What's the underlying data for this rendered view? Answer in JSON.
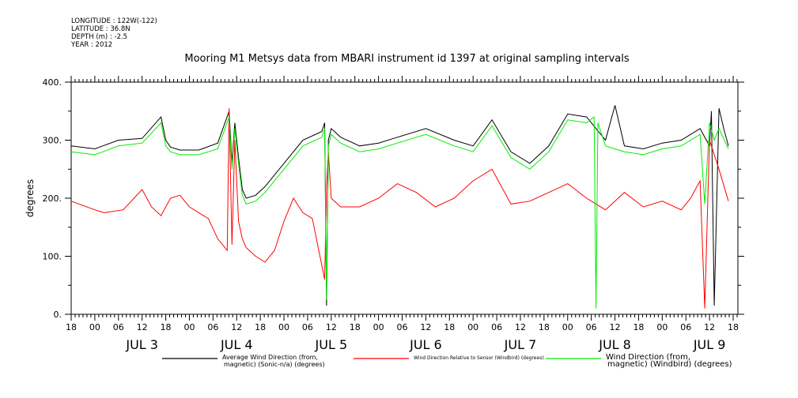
{
  "header": {
    "longitude": "LONGITUDE : 122W(-122)",
    "latitude": "LATITUDE : 36.8N",
    "depth": "DEPTH (m) : -2.5",
    "year": "YEAR : 2012",
    "title": "Mooring M1 Metsys data from MBARI instrument id 1397 at original sampling intervals"
  },
  "chart_data": {
    "type": "line",
    "title": "Mooring M1 Metsys data from MBARI instrument id 1397 at original sampling intervals",
    "ylabel": "degrees",
    "xlabel": "",
    "ylim": [
      0,
      400
    ],
    "yticks": [
      "0.",
      "100.",
      "200.",
      "300.",
      "400."
    ],
    "xlim": [
      -0.25,
      6.8
    ],
    "hour_ticks": [
      "00",
      "06",
      "12",
      "18"
    ],
    "days": [
      "JUL 3",
      "JUL 4",
      "JUL 5",
      "JUL 6",
      "JUL 7",
      "JUL 8",
      "JUL 9"
    ],
    "x_units": "days since JUL 3 00:00",
    "series": [
      {
        "name": "Average Wind Direction (from, magnetic) (Sonic-n/a) (degrees)",
        "legend_lines": [
          "Average Wind Direction (from,",
          "magnetic) (Sonic-n/a) (degrees)"
        ],
        "color": "#000000",
        "x": [
          -0.25,
          0.0,
          0.25,
          0.5,
          0.7,
          0.75,
          0.8,
          0.9,
          1.1,
          1.3,
          1.42,
          1.45,
          1.48,
          1.52,
          1.56,
          1.6,
          1.7,
          1.8,
          2.0,
          2.2,
          2.4,
          2.43,
          2.45,
          2.47,
          2.5,
          2.6,
          2.8,
          3.0,
          3.2,
          3.5,
          3.8,
          4.0,
          4.2,
          4.4,
          4.6,
          4.8,
          5.0,
          5.2,
          5.4,
          5.5,
          5.6,
          5.8,
          6.0,
          6.2,
          6.4,
          6.5,
          6.52,
          6.55,
          6.6,
          6.65,
          6.7
        ],
        "y": [
          290,
          285,
          300,
          303,
          340,
          300,
          288,
          283,
          283,
          295,
          350,
          260,
          330,
          270,
          215,
          200,
          205,
          220,
          260,
          300,
          315,
          330,
          15,
          300,
          320,
          305,
          290,
          295,
          305,
          320,
          300,
          290,
          335,
          280,
          260,
          290,
          345,
          340,
          300,
          360,
          290,
          285,
          295,
          300,
          320,
          290,
          350,
          15,
          355,
          320,
          290
        ]
      },
      {
        "name": "Wind Direction Relative to Sensor (Windbird) (degrees)",
        "legend_lines": [
          "Wind Direction Relative to Sensor (Windbird) (degrees)"
        ],
        "color": "#ff0000",
        "x": [
          -0.25,
          0.0,
          0.1,
          0.3,
          0.5,
          0.6,
          0.7,
          0.8,
          0.9,
          1.0,
          1.1,
          1.2,
          1.3,
          1.4,
          1.42,
          1.45,
          1.48,
          1.52,
          1.56,
          1.6,
          1.7,
          1.8,
          1.9,
          2.0,
          2.1,
          2.2,
          2.3,
          2.43,
          2.45,
          2.47,
          2.5,
          2.6,
          2.8,
          3.0,
          3.2,
          3.4,
          3.6,
          3.8,
          4.0,
          4.2,
          4.4,
          4.6,
          4.8,
          5.0,
          5.2,
          5.4,
          5.6,
          5.8,
          6.0,
          6.2,
          6.3,
          6.4,
          6.45,
          6.5,
          6.6,
          6.7
        ],
        "y": [
          195,
          180,
          175,
          180,
          215,
          185,
          170,
          200,
          205,
          185,
          175,
          165,
          130,
          110,
          355,
          120,
          300,
          160,
          130,
          115,
          100,
          90,
          110,
          160,
          200,
          175,
          165,
          60,
          220,
          280,
          200,
          185,
          185,
          200,
          225,
          210,
          185,
          200,
          230,
          250,
          190,
          195,
          210,
          225,
          200,
          180,
          210,
          185,
          195,
          180,
          200,
          230,
          10,
          300,
          250,
          195
        ]
      },
      {
        "name": "Wind Direction (from, magnetic) (Windbird) (degrees)",
        "legend_lines": [
          "Wind Direction (from,",
          "magnetic) (Windbird) (degrees)"
        ],
        "color": "#00ee00",
        "x": [
          -0.25,
          0.0,
          0.25,
          0.5,
          0.7,
          0.75,
          0.8,
          0.9,
          1.1,
          1.3,
          1.42,
          1.45,
          1.48,
          1.52,
          1.56,
          1.6,
          1.7,
          1.8,
          2.0,
          2.2,
          2.4,
          2.43,
          2.45,
          2.47,
          2.5,
          2.6,
          2.8,
          3.0,
          3.2,
          3.5,
          3.8,
          4.0,
          4.2,
          4.4,
          4.6,
          4.8,
          5.0,
          5.2,
          5.28,
          5.3,
          5.32,
          5.4,
          5.6,
          5.8,
          6.0,
          6.2,
          6.4,
          6.45,
          6.5,
          6.55,
          6.6,
          6.7
        ],
        "y": [
          280,
          275,
          290,
          295,
          330,
          290,
          280,
          275,
          275,
          285,
          340,
          250,
          320,
          260,
          205,
          190,
          195,
          210,
          250,
          290,
          305,
          320,
          25,
          290,
          310,
          295,
          280,
          285,
          295,
          310,
          290,
          280,
          325,
          270,
          250,
          280,
          335,
          330,
          340,
          10,
          330,
          290,
          280,
          275,
          285,
          290,
          310,
          190,
          330,
          300,
          320,
          285
        ]
      }
    ]
  }
}
